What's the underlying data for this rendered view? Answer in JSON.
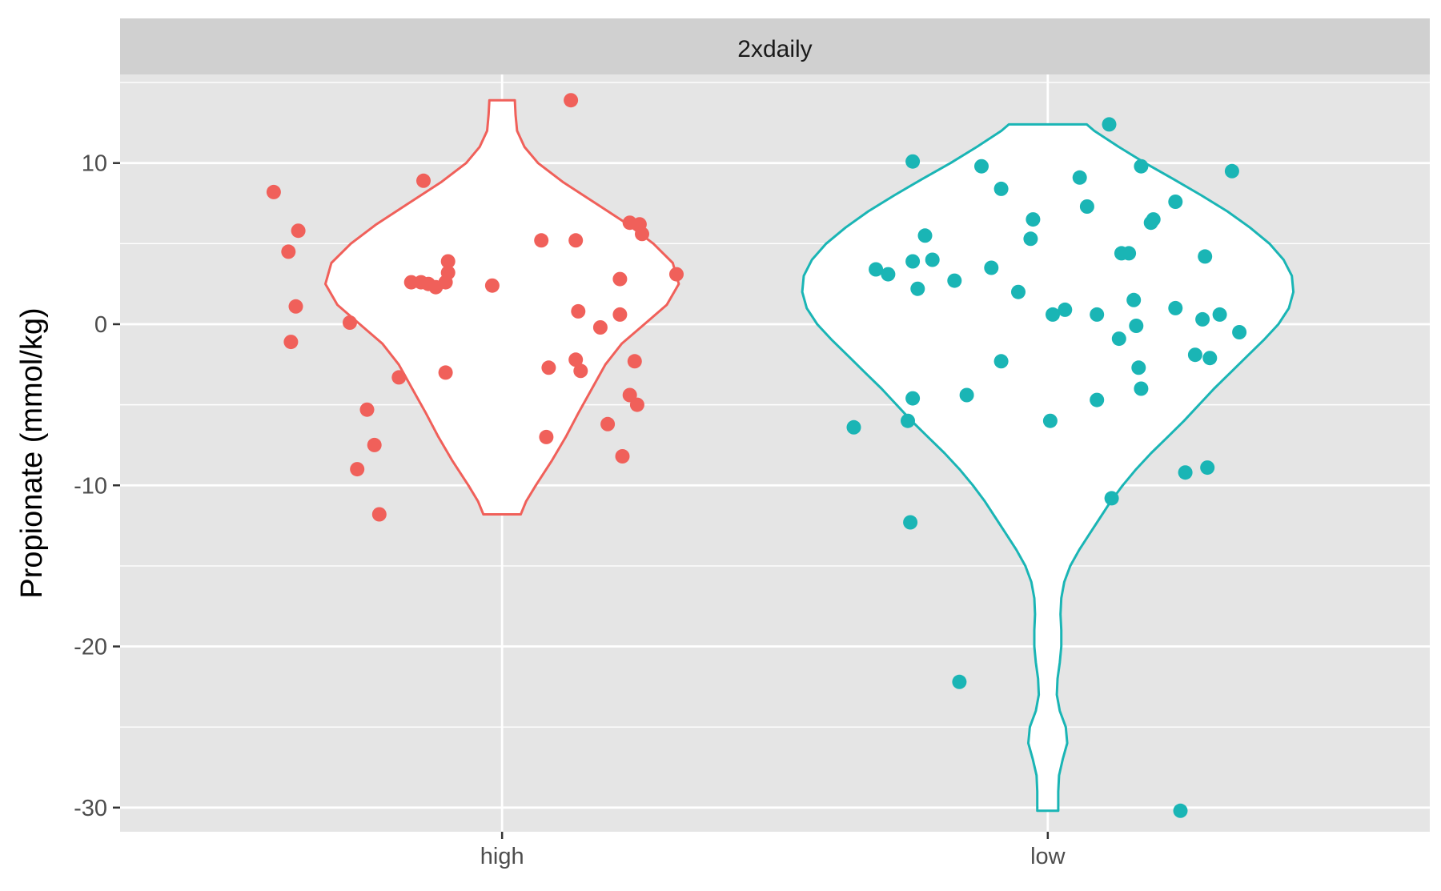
{
  "chart_data": {
    "type": "violin",
    "facet_label": "2xdaily",
    "xlabel": "",
    "ylabel": "Propionate (mmol/kg)",
    "ylim": [
      -31.5,
      15.5
    ],
    "y_ticks": [
      -30,
      -20,
      -10,
      0,
      10
    ],
    "y_tick_labels": [
      "-30",
      "-20",
      "-10",
      "0",
      "10"
    ],
    "categories": [
      "high",
      "low"
    ],
    "grid": true,
    "legend": "none",
    "colors": {
      "panel_bg": "#e5e5e5",
      "strip_bg": "#d0d0d0",
      "grid": "#ffffff",
      "violin_fill": "#ffffff",
      "high": "#f0605a",
      "low": "#1ab5b5"
    },
    "series": [
      {
        "category": "high",
        "violin_range": [
          -11.8,
          13.9
        ],
        "density_profile": [
          [
            -11.8,
            0.25
          ],
          [
            -11.0,
            0.32
          ],
          [
            -10.0,
            0.45
          ],
          [
            -8.5,
            0.66
          ],
          [
            -7.0,
            0.85
          ],
          [
            -5.5,
            1.02
          ],
          [
            -4.0,
            1.2
          ],
          [
            -2.5,
            1.38
          ],
          [
            -1.2,
            1.6
          ],
          [
            0.0,
            1.9
          ],
          [
            1.2,
            2.2
          ],
          [
            2.5,
            2.36
          ],
          [
            3.8,
            2.28
          ],
          [
            5.0,
            2.02
          ],
          [
            6.2,
            1.68
          ],
          [
            7.5,
            1.25
          ],
          [
            8.8,
            0.82
          ],
          [
            10.0,
            0.48
          ],
          [
            11.0,
            0.3
          ],
          [
            12.0,
            0.2
          ],
          [
            13.0,
            0.18
          ],
          [
            13.9,
            0.17
          ]
        ],
        "points": [
          [
            -0.93,
            8.2
          ],
          [
            -0.87,
            4.5
          ],
          [
            -0.83,
            5.8
          ],
          [
            -0.84,
            1.1
          ],
          [
            -0.86,
            -1.1
          ],
          [
            -0.62,
            0.1
          ],
          [
            -0.55,
            -5.3
          ],
          [
            -0.59,
            -9.0
          ],
          [
            -0.52,
            -7.5
          ],
          [
            -0.5,
            -11.8
          ],
          [
            -0.42,
            -3.3
          ],
          [
            -0.32,
            8.9
          ],
          [
            -0.37,
            2.6
          ],
          [
            -0.33,
            2.6
          ],
          [
            -0.3,
            2.5
          ],
          [
            -0.27,
            2.3
          ],
          [
            -0.23,
            2.6
          ],
          [
            -0.22,
            3.9
          ],
          [
            -0.22,
            3.2
          ],
          [
            -0.23,
            -3.0
          ],
          [
            -0.04,
            2.4
          ],
          [
            0.16,
            5.2
          ],
          [
            0.3,
            5.2
          ],
          [
            0.31,
            0.8
          ],
          [
            0.3,
            -2.2
          ],
          [
            0.32,
            -2.9
          ],
          [
            0.19,
            -2.7
          ],
          [
            0.18,
            -7.0
          ],
          [
            0.4,
            -0.2
          ],
          [
            0.48,
            0.6
          ],
          [
            0.48,
            2.8
          ],
          [
            0.49,
            -8.2
          ],
          [
            0.43,
            -6.2
          ],
          [
            0.52,
            -4.4
          ],
          [
            0.54,
            -2.3
          ],
          [
            0.55,
            -5.0
          ],
          [
            0.52,
            6.3
          ],
          [
            0.56,
            6.2
          ],
          [
            0.57,
            5.6
          ],
          [
            0.71,
            3.1
          ],
          [
            0.28,
            13.9
          ]
        ]
      },
      {
        "category": "low",
        "violin_range": [
          -30.2,
          12.4
        ],
        "density_profile": [
          [
            -30.2,
            0.14
          ],
          [
            -29.0,
            0.14
          ],
          [
            -28.0,
            0.15
          ],
          [
            -27.0,
            0.2
          ],
          [
            -26.0,
            0.26
          ],
          [
            -25.0,
            0.24
          ],
          [
            -24.0,
            0.16
          ],
          [
            -23.0,
            0.12
          ],
          [
            -22.0,
            0.13
          ],
          [
            -21.0,
            0.16
          ],
          [
            -20.0,
            0.18
          ],
          [
            -19.0,
            0.18
          ],
          [
            -18.0,
            0.17
          ],
          [
            -17.0,
            0.18
          ],
          [
            -16.0,
            0.22
          ],
          [
            -15.0,
            0.3
          ],
          [
            -14.0,
            0.42
          ],
          [
            -13.0,
            0.56
          ],
          [
            -12.0,
            0.7
          ],
          [
            -11.0,
            0.84
          ],
          [
            -10.0,
            1.0
          ],
          [
            -9.0,
            1.18
          ],
          [
            -8.0,
            1.38
          ],
          [
            -7.0,
            1.6
          ],
          [
            -6.0,
            1.82
          ],
          [
            -5.0,
            2.02
          ],
          [
            -4.0,
            2.22
          ],
          [
            -3.0,
            2.44
          ],
          [
            -2.0,
            2.66
          ],
          [
            -1.0,
            2.88
          ],
          [
            0.0,
            3.08
          ],
          [
            1.0,
            3.22
          ],
          [
            2.0,
            3.28
          ],
          [
            3.0,
            3.26
          ],
          [
            4.0,
            3.15
          ],
          [
            5.0,
            2.96
          ],
          [
            6.0,
            2.7
          ],
          [
            7.0,
            2.4
          ],
          [
            8.0,
            2.05
          ],
          [
            9.0,
            1.68
          ],
          [
            10.0,
            1.3
          ],
          [
            11.0,
            0.95
          ],
          [
            12.0,
            0.62
          ],
          [
            12.4,
            0.52
          ]
        ],
        "points": [
          [
            -0.79,
            -6.4
          ],
          [
            -0.7,
            3.4
          ],
          [
            -0.65,
            3.1
          ],
          [
            -0.57,
            -6.0
          ],
          [
            -0.55,
            -4.6
          ],
          [
            -0.56,
            -12.3
          ],
          [
            -0.55,
            10.1
          ],
          [
            -0.55,
            3.9
          ],
          [
            -0.53,
            2.2
          ],
          [
            -0.5,
            5.5
          ],
          [
            -0.47,
            4.0
          ],
          [
            -0.38,
            2.7
          ],
          [
            -0.33,
            -4.4
          ],
          [
            -0.36,
            -22.2
          ],
          [
            -0.27,
            9.8
          ],
          [
            -0.23,
            3.5
          ],
          [
            -0.19,
            8.4
          ],
          [
            -0.19,
            -2.3
          ],
          [
            -0.12,
            2.0
          ],
          [
            -0.07,
            5.3
          ],
          [
            -0.06,
            6.5
          ],
          [
            0.02,
            0.6
          ],
          [
            0.01,
            -6.0
          ],
          [
            0.07,
            0.9
          ],
          [
            0.13,
            9.1
          ],
          [
            0.16,
            7.3
          ],
          [
            0.2,
            0.6
          ],
          [
            0.2,
            -4.7
          ],
          [
            0.25,
            12.4
          ],
          [
            0.26,
            -10.8
          ],
          [
            0.29,
            -0.9
          ],
          [
            0.3,
            4.4
          ],
          [
            0.33,
            4.4
          ],
          [
            0.35,
            1.5
          ],
          [
            0.36,
            -0.1
          ],
          [
            0.37,
            -2.7
          ],
          [
            0.38,
            -4.0
          ],
          [
            0.38,
            9.8
          ],
          [
            0.42,
            6.3
          ],
          [
            0.43,
            6.5
          ],
          [
            0.52,
            7.6
          ],
          [
            0.52,
            1.0
          ],
          [
            0.56,
            -9.2
          ],
          [
            0.6,
            -1.9
          ],
          [
            0.63,
            0.3
          ],
          [
            0.64,
            4.2
          ],
          [
            0.65,
            -8.9
          ],
          [
            0.66,
            -2.1
          ],
          [
            0.7,
            0.6
          ],
          [
            0.75,
            9.5
          ],
          [
            0.78,
            -0.5
          ],
          [
            0.54,
            -30.2
          ]
        ]
      }
    ]
  }
}
